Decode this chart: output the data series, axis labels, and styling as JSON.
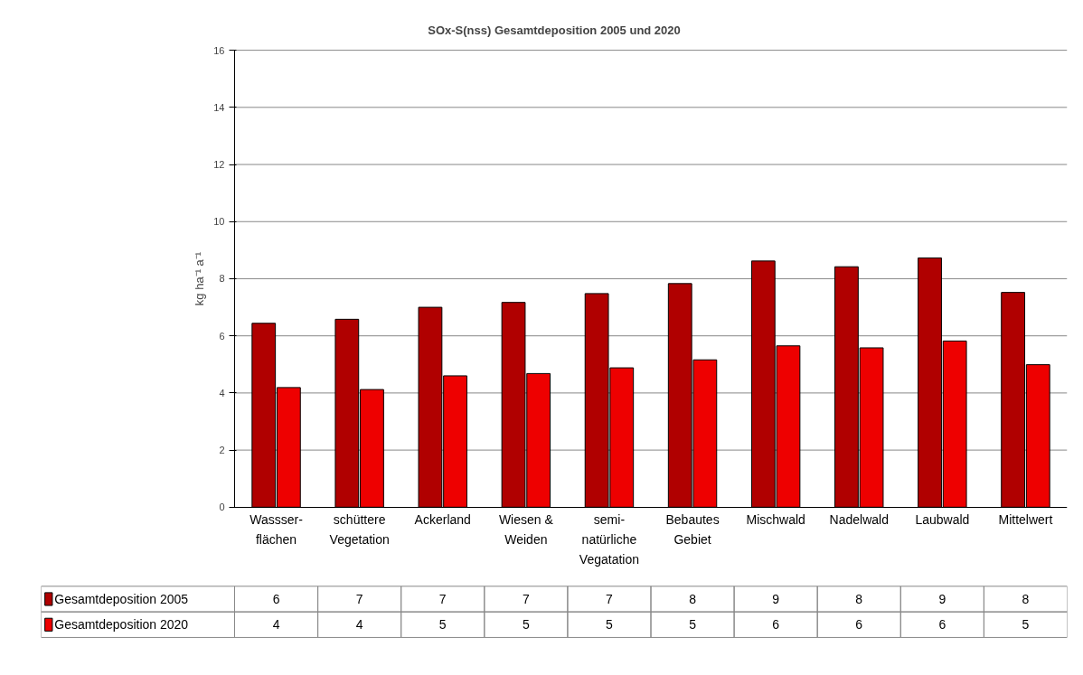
{
  "chart_data": {
    "type": "bar",
    "title": "SOx-S(nss) Gesamtdeposition 2005 und 2020",
    "ylabel": "kg ha⁻¹ a⁻¹",
    "categories": [
      "Wassser-\nflächen",
      "schüttere\nVegetation",
      "Ackerland",
      "Wiesen &\nWeiden",
      "semi-\nnatürliche\nVegatation",
      "Bebautes\nGebiet",
      "Mischwald",
      "Nadelwald",
      "Laubwald",
      "Mittelwert"
    ],
    "series": [
      {
        "name": "Gesamtdeposition 2005",
        "color": "#b00000",
        "values": [
          6.44,
          6.58,
          7.0,
          7.17,
          7.48,
          7.83,
          8.62,
          8.42,
          8.73,
          7.52
        ],
        "value_labels": [
          "6",
          "7",
          "7",
          "7",
          "7",
          "8",
          "9",
          "8",
          "9",
          "8"
        ]
      },
      {
        "name": "Gesamtdeposition 2020",
        "color": "#ee0000",
        "values": [
          4.19,
          4.12,
          4.6,
          4.68,
          4.88,
          5.16,
          5.65,
          5.58,
          5.82,
          4.99
        ],
        "value_labels": [
          "4",
          "4",
          "5",
          "5",
          "5",
          "5",
          "6",
          "6",
          "6",
          "5"
        ]
      }
    ],
    "ylim": [
      0,
      16
    ],
    "yticks": [
      0,
      2,
      4,
      6,
      8,
      10,
      12,
      14,
      16
    ],
    "grid": "y",
    "legend": "bottom"
  }
}
